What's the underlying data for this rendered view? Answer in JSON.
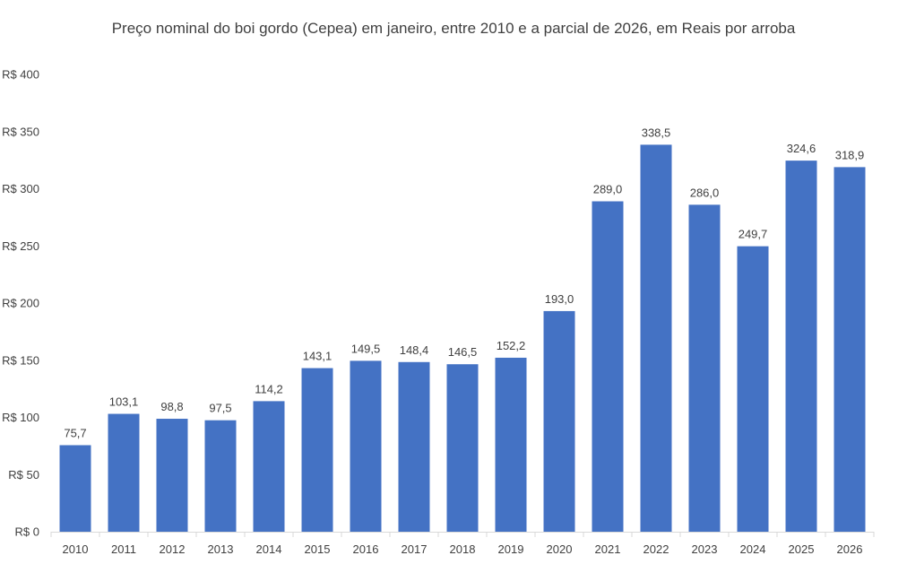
{
  "chart_data": {
    "type": "bar",
    "title": "Preço nominal do boi gordo (Cepea) em janeiro, entre 2010 e a parcial de 2026, em Reais por arroba",
    "categories": [
      "2010",
      "2011",
      "2012",
      "2013",
      "2014",
      "2015",
      "2016",
      "2017",
      "2018",
      "2019",
      "2020",
      "2021",
      "2022",
      "2023",
      "2024",
      "2025",
      "2026"
    ],
    "values": [
      75.7,
      103.1,
      98.8,
      97.5,
      114.2,
      143.1,
      149.5,
      148.4,
      146.5,
      152.2,
      193.0,
      289.0,
      338.5,
      286.0,
      249.7,
      324.6,
      318.9
    ],
    "data_labels": [
      "75,7",
      "103,1",
      "98,8",
      "97,5",
      "114,2",
      "143,1",
      "149,5",
      "148,4",
      "146,5",
      "152,2",
      "193,0",
      "289,0",
      "338,5",
      "286,0",
      "249,7",
      "324,6",
      "318,9"
    ],
    "ylim": [
      0,
      400
    ],
    "yticks": [
      0,
      50,
      100,
      150,
      200,
      250,
      300,
      350,
      400
    ],
    "ytick_labels": [
      "R$ 0",
      "R$ 50",
      "R$ 100",
      "R$ 150",
      "R$ 200",
      "R$ 250",
      "R$ 300",
      "R$ 350",
      "R$ 400"
    ],
    "xlabel": "",
    "ylabel": "",
    "grid": false,
    "legend": false,
    "colors": {
      "bar": "#4472C4",
      "axis": "#D9D9D9",
      "text": "#404040"
    }
  }
}
